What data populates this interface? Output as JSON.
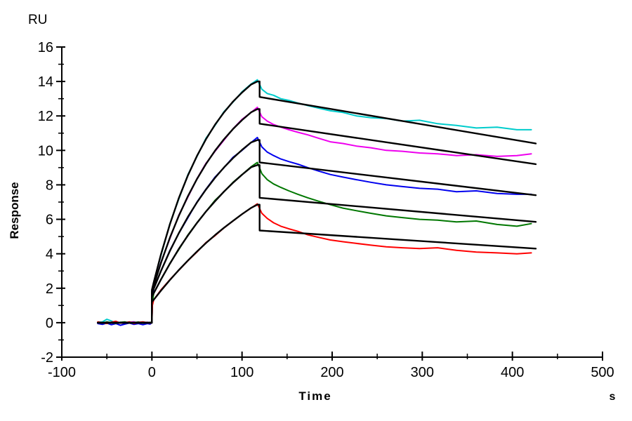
{
  "page": {
    "background": "#FFFFFF",
    "axis_color": "#000000"
  },
  "chart_data": {
    "type": "line",
    "title": "",
    "y_unit_label": "RU",
    "x_unit_label": "s",
    "xlabel": "Time",
    "ylabel": "Response",
    "xlim": [
      -100,
      500
    ],
    "ylim": [
      -2,
      16
    ],
    "x_major_ticks": [
      -100,
      0,
      100,
      200,
      300,
      400,
      500
    ],
    "x_minor_ticks": [
      -50,
      50,
      150,
      250,
      350,
      450
    ],
    "y_major_ticks": [
      -2,
      0,
      2,
      4,
      6,
      8,
      10,
      12,
      14,
      16
    ],
    "y_minor_ticks": [
      -1,
      1,
      3,
      5,
      7,
      9,
      11,
      13,
      15
    ],
    "grid": false,
    "legend": "none",
    "description": "SPR sensorgram: five concentration traces (cyan, magenta, blue, green, red) with black kinetic fit lines; association 0-117 s, dissociation 117-421 s",
    "series": [
      {
        "name": "sensorgram-cyan",
        "role": "data",
        "color": "#00CCCC",
        "width": 2,
        "x": [
          -60,
          -55,
          -50,
          -45,
          -40,
          -35,
          -30,
          -25,
          -20,
          -15,
          -10,
          -5,
          -2,
          0,
          0.5,
          2,
          10,
          20,
          30,
          40,
          50,
          60,
          70,
          80,
          90,
          100,
          110,
          117,
          122,
          128,
          135,
          143,
          152,
          162,
          173,
          185,
          198,
          212,
          227,
          243,
          260,
          278,
          297,
          317,
          338,
          360,
          383,
          405,
          421
        ],
        "y": [
          0.02,
          0.05,
          0.2,
          0.1,
          -0.02,
          0.03,
          -0.05,
          0.02,
          0.05,
          -0.03,
          0.02,
          -0.02,
          0.0,
          0.0,
          1.6,
          2.34,
          3.9,
          5.75,
          7.2,
          8.6,
          9.65,
          10.7,
          11.45,
          12.25,
          12.8,
          13.4,
          13.85,
          14.1,
          13.55,
          13.3,
          13.2,
          13.0,
          12.9,
          12.75,
          12.6,
          12.45,
          12.3,
          12.2,
          12.0,
          11.9,
          11.85,
          11.7,
          11.75,
          11.55,
          11.45,
          11.3,
          11.35,
          11.2,
          11.2
        ]
      },
      {
        "name": "sensorgram-magenta",
        "role": "data",
        "color": "#EE00EE",
        "width": 2,
        "x": [
          -60,
          -55,
          -50,
          -45,
          -40,
          -35,
          -30,
          -25,
          -20,
          -15,
          -10,
          -5,
          -2,
          0,
          0.5,
          2,
          10,
          20,
          30,
          40,
          50,
          60,
          70,
          80,
          90,
          100,
          110,
          117,
          122,
          128,
          135,
          143,
          152,
          162,
          173,
          185,
          198,
          212,
          227,
          243,
          260,
          278,
          297,
          317,
          338,
          360,
          383,
          405,
          421
        ],
        "y": [
          0.0,
          -0.05,
          0.04,
          -0.02,
          0.05,
          0.0,
          -0.06,
          0.03,
          0.05,
          -0.02,
          0.0,
          0.03,
          -0.02,
          0.0,
          1.5,
          2.15,
          3.5,
          4.9,
          6.25,
          7.3,
          8.35,
          9.25,
          9.95,
          10.6,
          11.25,
          11.8,
          12.2,
          12.5,
          11.95,
          11.7,
          11.5,
          11.35,
          11.2,
          11.05,
          10.9,
          10.7,
          10.5,
          10.4,
          10.25,
          10.15,
          10.0,
          9.95,
          9.85,
          9.8,
          9.7,
          9.75,
          9.65,
          9.7,
          9.8
        ]
      },
      {
        "name": "sensorgram-blue",
        "role": "data",
        "color": "#0000EE",
        "width": 2,
        "x": [
          -60,
          -55,
          -50,
          -45,
          -40,
          -35,
          -30,
          -25,
          -20,
          -15,
          -10,
          -5,
          -2,
          0,
          0.5,
          2,
          10,
          20,
          30,
          40,
          50,
          60,
          70,
          80,
          90,
          100,
          110,
          117,
          122,
          128,
          135,
          143,
          152,
          162,
          173,
          185,
          198,
          212,
          227,
          243,
          260,
          278,
          297,
          317,
          338,
          360,
          383,
          405,
          421
        ],
        "y": [
          -0.05,
          -0.1,
          -0.02,
          -0.12,
          -0.05,
          -0.15,
          -0.08,
          -0.02,
          -0.1,
          -0.05,
          -0.12,
          -0.05,
          -0.08,
          0.0,
          1.4,
          1.97,
          3.0,
          4.2,
          5.2,
          6.1,
          7.0,
          7.75,
          8.45,
          9.0,
          9.6,
          10.0,
          10.45,
          10.75,
          10.2,
          9.9,
          9.7,
          9.5,
          9.35,
          9.2,
          9.0,
          8.8,
          8.6,
          8.45,
          8.3,
          8.15,
          8.0,
          7.9,
          7.8,
          7.75,
          7.6,
          7.65,
          7.5,
          7.45,
          7.45
        ]
      },
      {
        "name": "sensorgram-green",
        "role": "data",
        "color": "#007700",
        "width": 2,
        "x": [
          -60,
          -55,
          -50,
          -45,
          -40,
          -35,
          -30,
          -25,
          -20,
          -15,
          -10,
          -5,
          -2,
          0,
          0.5,
          2,
          10,
          20,
          30,
          40,
          50,
          60,
          70,
          80,
          90,
          100,
          110,
          117,
          122,
          128,
          135,
          143,
          152,
          162,
          173,
          185,
          198,
          212,
          227,
          243,
          260,
          278,
          297,
          317,
          338,
          360,
          383,
          405,
          421
        ],
        "y": [
          0.02,
          -0.03,
          0.05,
          0.0,
          -0.04,
          0.02,
          0.05,
          -0.02,
          0.0,
          0.04,
          -0.03,
          0.0,
          0.02,
          0.0,
          1.2,
          1.7,
          2.5,
          3.45,
          4.25,
          5.1,
          5.8,
          6.45,
          7.1,
          7.6,
          8.15,
          8.6,
          9.05,
          9.3,
          8.65,
          8.3,
          8.05,
          7.85,
          7.65,
          7.45,
          7.25,
          7.05,
          6.85,
          6.65,
          6.5,
          6.35,
          6.2,
          6.1,
          6.0,
          5.95,
          5.85,
          5.9,
          5.7,
          5.6,
          5.75
        ]
      },
      {
        "name": "sensorgram-red",
        "role": "data",
        "color": "#FF0000",
        "width": 2,
        "x": [
          -60,
          -55,
          -50,
          -45,
          -40,
          -35,
          -30,
          -25,
          -20,
          -15,
          -10,
          -5,
          -2,
          0,
          0.5,
          2,
          10,
          20,
          30,
          40,
          50,
          60,
          70,
          80,
          90,
          100,
          110,
          117,
          122,
          128,
          135,
          143,
          152,
          162,
          173,
          185,
          198,
          212,
          227,
          243,
          260,
          278,
          297,
          317,
          338,
          360,
          383,
          405,
          421
        ],
        "y": [
          0.05,
          0.0,
          -0.05,
          0.03,
          0.08,
          -0.02,
          0.0,
          0.05,
          -0.05,
          0.02,
          0.05,
          0.0,
          -0.03,
          0.0,
          1.0,
          1.33,
          1.9,
          2.5,
          3.05,
          3.6,
          4.1,
          4.65,
          5.05,
          5.5,
          5.9,
          6.3,
          6.65,
          6.9,
          6.35,
          6.05,
          5.8,
          5.6,
          5.45,
          5.3,
          5.1,
          4.95,
          4.8,
          4.7,
          4.6,
          4.5,
          4.4,
          4.35,
          4.3,
          4.35,
          4.2,
          4.1,
          4.05,
          4.0,
          4.05
        ]
      },
      {
        "name": "fit-cyan",
        "role": "fit",
        "color": "#000000",
        "width": 2.4,
        "x": [
          -60,
          0,
          0,
          2,
          10,
          20,
          30,
          40,
          50,
          60,
          70,
          80,
          90,
          100,
          110,
          117,
          119.5,
          119.5,
          426
        ],
        "y": [
          0,
          0,
          1.9,
          2.34,
          3.96,
          5.72,
          7.25,
          8.56,
          9.68,
          10.65,
          11.49,
          12.21,
          12.83,
          13.36,
          13.82,
          14.0,
          14.0,
          13.1,
          10.4
        ]
      },
      {
        "name": "fit-magenta",
        "role": "fit",
        "color": "#000000",
        "width": 2.4,
        "x": [
          -60,
          0,
          0,
          2,
          10,
          20,
          30,
          40,
          50,
          60,
          70,
          80,
          90,
          100,
          110,
          117,
          119.5,
          119.5,
          426
        ],
        "y": [
          0,
          0,
          1.8,
          2.15,
          3.47,
          4.94,
          6.22,
          7.35,
          8.34,
          9.21,
          9.98,
          10.65,
          11.24,
          11.76,
          12.21,
          12.4,
          12.4,
          11.55,
          9.2
        ]
      },
      {
        "name": "fit-blue",
        "role": "fit",
        "color": "#000000",
        "width": 2.4,
        "x": [
          -60,
          0,
          0,
          2,
          10,
          20,
          30,
          40,
          50,
          60,
          70,
          80,
          90,
          100,
          110,
          117,
          119.5,
          119.5,
          426
        ],
        "y": [
          0,
          0,
          1.7,
          1.97,
          3.0,
          4.17,
          5.21,
          6.15,
          6.98,
          7.73,
          8.41,
          9.01,
          9.55,
          10.03,
          10.46,
          10.6,
          10.6,
          9.3,
          7.4
        ]
      },
      {
        "name": "fit-green",
        "role": "fit",
        "color": "#000000",
        "width": 2.4,
        "x": [
          -60,
          0,
          0,
          2,
          10,
          20,
          30,
          40,
          50,
          60,
          70,
          80,
          90,
          100,
          110,
          117,
          119.5,
          119.5,
          426
        ],
        "y": [
          0,
          0,
          1.5,
          1.71,
          2.51,
          3.43,
          4.29,
          5.07,
          5.79,
          6.45,
          7.05,
          7.61,
          8.12,
          8.59,
          9.02,
          9.15,
          9.15,
          7.25,
          5.85
        ]
      },
      {
        "name": "fit-red",
        "role": "fit",
        "color": "#000000",
        "width": 2.4,
        "x": [
          -60,
          0,
          0,
          2,
          10,
          20,
          30,
          40,
          50,
          60,
          70,
          80,
          90,
          100,
          110,
          117,
          119.5,
          119.5,
          426
        ],
        "y": [
          0,
          0,
          1.2,
          1.33,
          1.86,
          2.48,
          3.06,
          3.61,
          4.13,
          4.62,
          5.08,
          5.51,
          5.91,
          6.3,
          6.66,
          6.85,
          6.85,
          5.35,
          4.3
        ]
      }
    ]
  }
}
